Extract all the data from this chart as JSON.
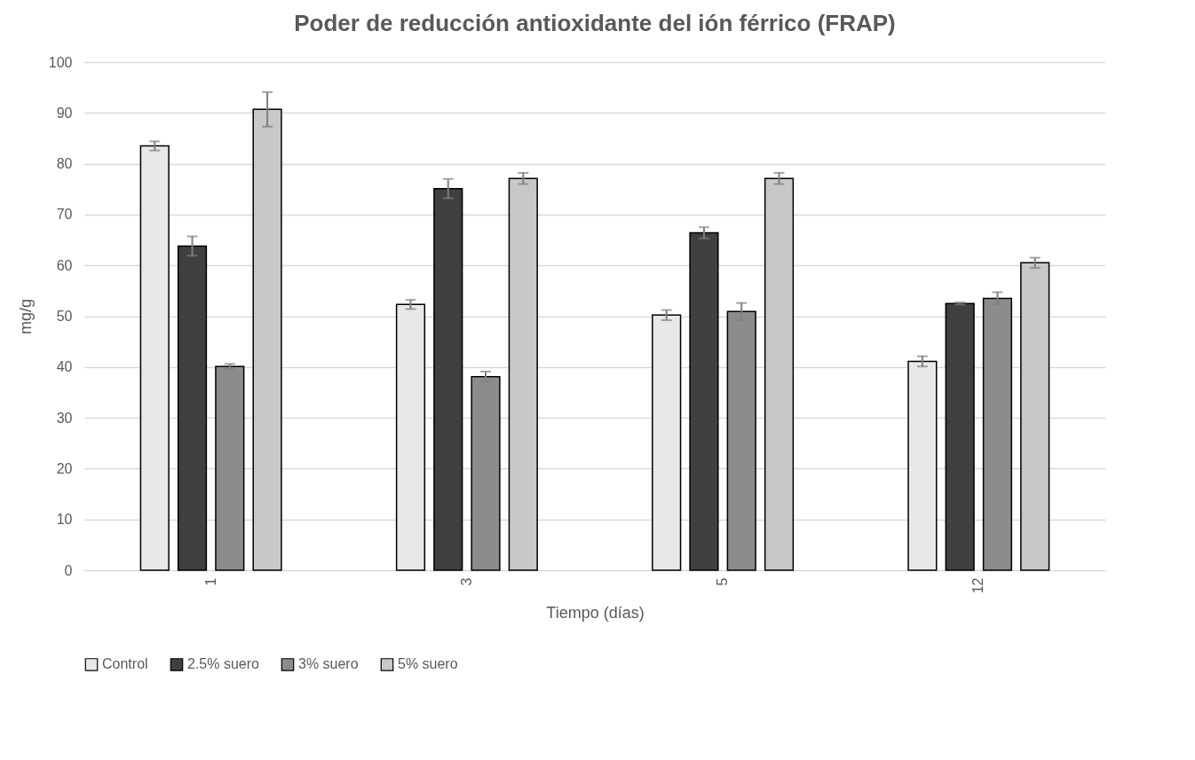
{
  "chart_data": {
    "type": "bar",
    "title": "Poder de reducción antioxidante del ión férrico (FRAP)",
    "xlabel": "Tiempo (días)",
    "ylabel": "mg/g",
    "categories": [
      "1",
      "3",
      "5",
      "12"
    ],
    "series": [
      {
        "name": "Control",
        "color": "#e8e8e8",
        "values": [
          83.5,
          52.3,
          50.2,
          41.1
        ],
        "errors": [
          0.9,
          0.9,
          1.0,
          1.0
        ]
      },
      {
        "name": "2.5% suero",
        "color": "#404040",
        "values": [
          63.8,
          75.1,
          66.4,
          52.5
        ],
        "errors": [
          1.9,
          1.9,
          1.1,
          0.2
        ]
      },
      {
        "name": "3% suero",
        "color": "#8c8c8c",
        "values": [
          40.1,
          38.1,
          50.9,
          53.5
        ],
        "errors": [
          0.5,
          1.0,
          1.7,
          1.2
        ]
      },
      {
        "name": "5% suero",
        "color": "#c8c8c8",
        "values": [
          90.7,
          77.1,
          77.1,
          60.5
        ],
        "errors": [
          3.4,
          1.1,
          1.1,
          1.0
        ]
      }
    ],
    "ylim": [
      0,
      100
    ],
    "yticks": [
      0,
      10,
      20,
      30,
      40,
      50,
      60,
      70,
      80,
      90,
      100
    ],
    "grid": "y",
    "legend": "bottom"
  }
}
